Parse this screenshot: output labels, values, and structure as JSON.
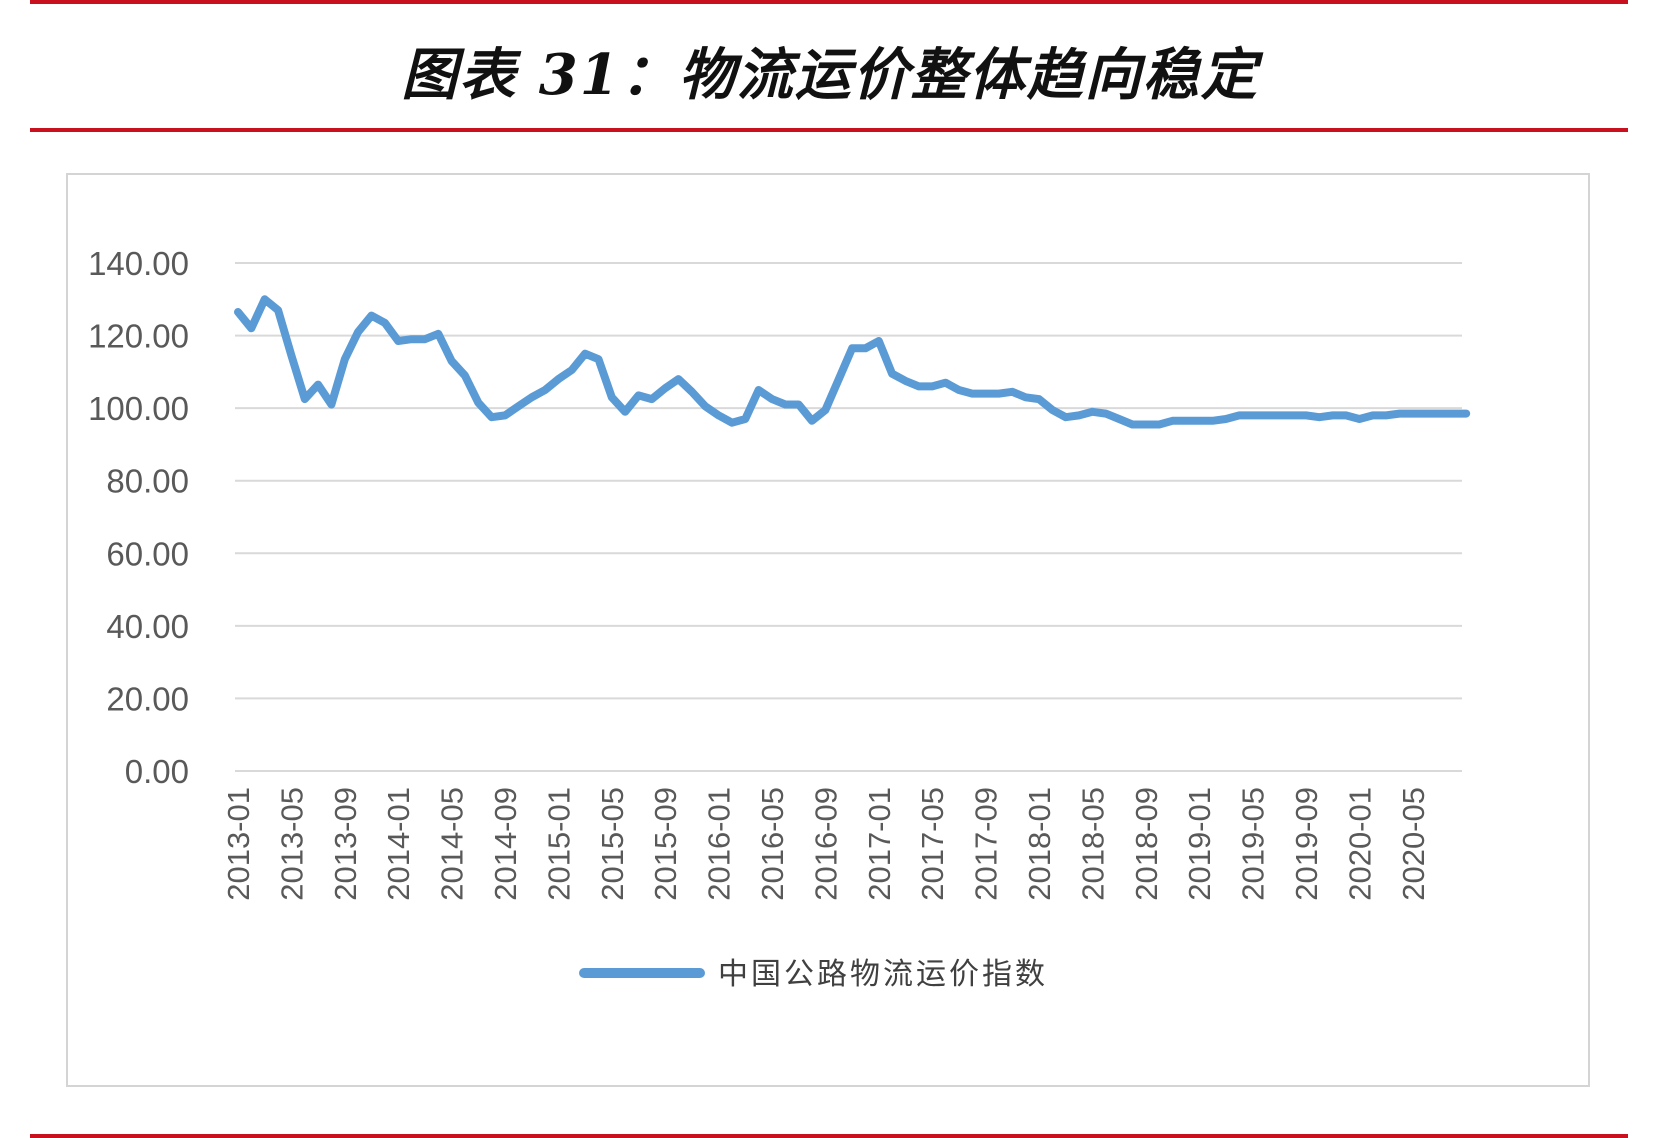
{
  "title": "图表 31：物流运价整体趋向稳定",
  "chart_data": {
    "type": "line",
    "title": "",
    "xlabel": "",
    "ylabel": "",
    "ylim": [
      0,
      140
    ],
    "yticks": [
      "0.00",
      "20.00",
      "40.00",
      "60.00",
      "80.00",
      "100.00",
      "120.00",
      "140.00"
    ],
    "ytick_values": [
      0,
      20,
      40,
      60,
      80,
      100,
      120,
      140
    ],
    "xtick_labels": [
      "2013-01",
      "2013-05",
      "2013-09",
      "2014-01",
      "2014-05",
      "2014-09",
      "2015-01",
      "2015-05",
      "2015-09",
      "2016-01",
      "2016-05",
      "2016-09",
      "2017-01",
      "2017-05",
      "2017-09",
      "2018-01",
      "2018-05",
      "2018-09",
      "2019-01",
      "2019-05",
      "2019-09",
      "2020-01",
      "2020-05"
    ],
    "grid": true,
    "legend_position": "bottom",
    "color": "#5b9bd5",
    "series": [
      {
        "name": "中国公路物流运价指数",
        "x": [
          "2013-01",
          "2013-02",
          "2013-03",
          "2013-04",
          "2013-05",
          "2013-06",
          "2013-07",
          "2013-08",
          "2013-09",
          "2013-10",
          "2013-11",
          "2013-12",
          "2014-01",
          "2014-02",
          "2014-03",
          "2014-04",
          "2014-05",
          "2014-06",
          "2014-07",
          "2014-08",
          "2014-09",
          "2014-10",
          "2014-11",
          "2014-12",
          "2015-01",
          "2015-02",
          "2015-03",
          "2015-04",
          "2015-05",
          "2015-06",
          "2015-07",
          "2015-08",
          "2015-09",
          "2015-10",
          "2015-11",
          "2015-12",
          "2016-01",
          "2016-02",
          "2016-03",
          "2016-04",
          "2016-05",
          "2016-06",
          "2016-07",
          "2016-08",
          "2016-09",
          "2016-10",
          "2016-11",
          "2016-12",
          "2017-01",
          "2017-02",
          "2017-03",
          "2017-04",
          "2017-05",
          "2017-06",
          "2017-07",
          "2017-08",
          "2017-09",
          "2017-10",
          "2017-11",
          "2017-12",
          "2018-01",
          "2018-02",
          "2018-03",
          "2018-04",
          "2018-05",
          "2018-06",
          "2018-07",
          "2018-08",
          "2018-09",
          "2018-10",
          "2018-11",
          "2018-12",
          "2019-01",
          "2019-02",
          "2019-03",
          "2019-04",
          "2019-05",
          "2019-06",
          "2019-07",
          "2019-08",
          "2019-09",
          "2019-10",
          "2019-11",
          "2019-12",
          "2020-01",
          "2020-02",
          "2020-03",
          "2020-04",
          "2020-05",
          "2020-06",
          "2020-07",
          "2020-08",
          "2020-09"
        ],
        "values": [
          126.5,
          122,
          130,
          127,
          114.5,
          102.5,
          106.5,
          101,
          113.5,
          121,
          125.5,
          123.5,
          118.5,
          119,
          119,
          120.5,
          113,
          109,
          101.5,
          97.5,
          98,
          100.5,
          103,
          105,
          108,
          110.5,
          115,
          113.5,
          103,
          99,
          103.5,
          102.5,
          105.5,
          108,
          104.5,
          100.5,
          98,
          96,
          97,
          105,
          102.5,
          101,
          101,
          96.5,
          99.5,
          108,
          116.5,
          116.5,
          118.5,
          109.5,
          107.5,
          106,
          106,
          107,
          105,
          104,
          104,
          104,
          104.5,
          103,
          102.5,
          99.5,
          97.5,
          98,
          99,
          98.5,
          97,
          95.5,
          95.5,
          95.5,
          96.5,
          96.5,
          96.5,
          96.5,
          97,
          98,
          98,
          98,
          98,
          98,
          98,
          97.5,
          98,
          98,
          97,
          98,
          98,
          98.5,
          98.5,
          98.5,
          98.5,
          98.5,
          98.5
        ]
      }
    ]
  }
}
